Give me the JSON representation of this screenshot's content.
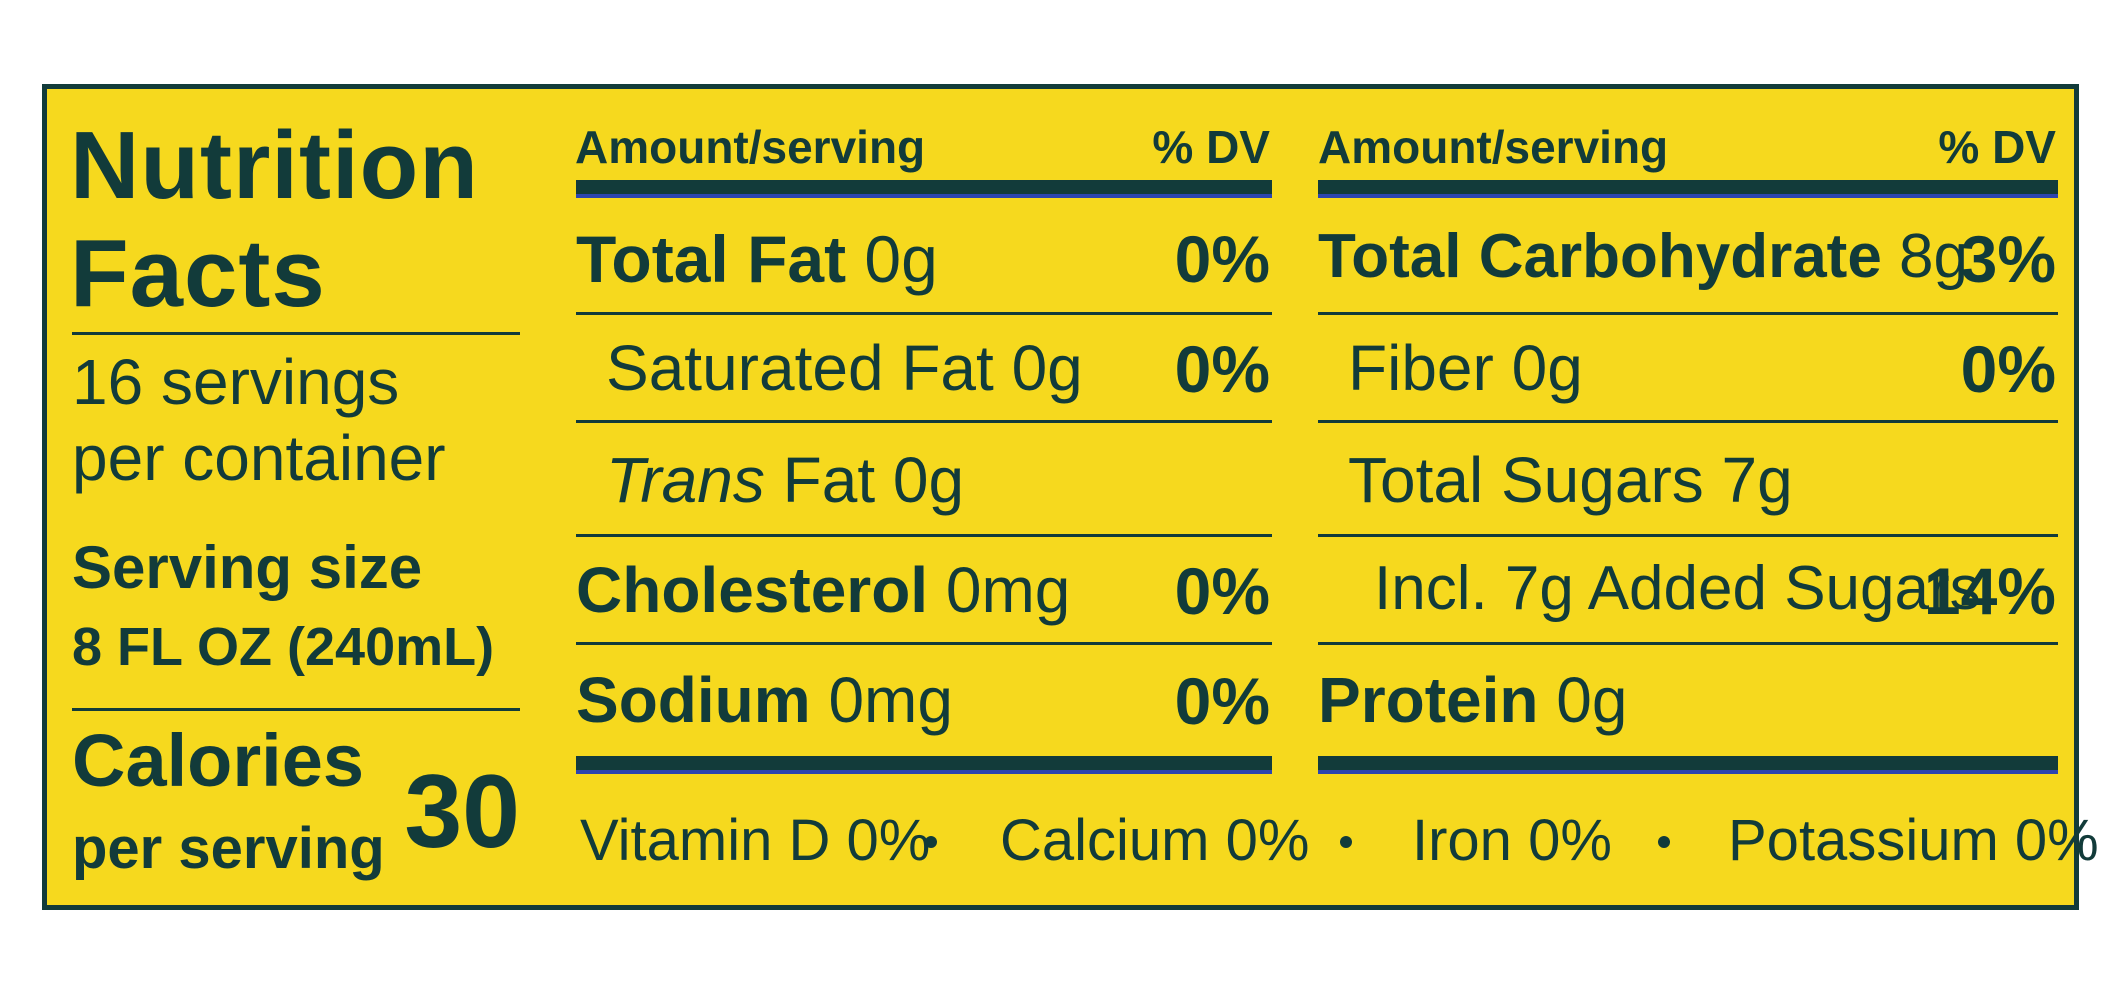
{
  "title": [
    "Nutrition",
    "Facts"
  ],
  "servings": [
    "16 servings",
    "per container"
  ],
  "serving_size": {
    "label": "Serving size",
    "value": "8 FL OZ (240mL)"
  },
  "calories": {
    "label": "Calories",
    "sub": "per serving",
    "value": "30"
  },
  "left_table": {
    "header": {
      "amount": "Amount/serving",
      "dv": "% DV"
    },
    "rows": [
      {
        "name": "Total Fat",
        "amount": " 0g",
        "dv": "0%"
      },
      {
        "name": "Saturated Fat 0g",
        "dv": "0%"
      },
      {
        "name_italic": "Trans",
        "name": " Fat 0g"
      },
      {
        "name": "Cholesterol",
        "amount": " 0mg",
        "dv": "0%"
      },
      {
        "name": "Sodium",
        "amount": " 0mg",
        "dv": "0%"
      }
    ]
  },
  "right_table": {
    "header": {
      "amount": "Amount/serving",
      "dv": "% DV"
    },
    "rows": [
      {
        "name": "Total Carbohydrate",
        "amount": " 8g",
        "dv": "3%"
      },
      {
        "name": "Fiber 0g",
        "dv": "0%"
      },
      {
        "name": "Total Sugars 7g"
      },
      {
        "name": "Incl. 7g Added Sugars",
        "dv": "14%"
      },
      {
        "name": "Protein",
        "amount": " 0g"
      }
    ]
  },
  "micros": [
    {
      "name": "Vitamin D",
      "value": "0%"
    },
    {
      "name": "Calcium",
      "value": "0%"
    },
    {
      "name": "Iron",
      "value": "0%"
    },
    {
      "name": "Potassium",
      "value": "0%"
    }
  ],
  "colors": {
    "background": "#f6d91e",
    "ink": "#123b3a",
    "accent_blue": "#2c45b0"
  }
}
